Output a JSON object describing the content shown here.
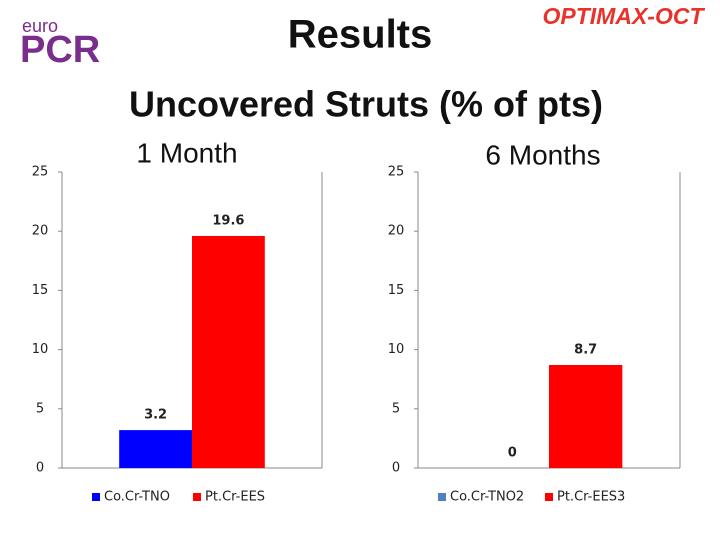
{
  "header": {
    "logo_small": "euro",
    "logo_large": "PCR",
    "title": "Results",
    "tag": "OPTIMAX-OCT",
    "subtitle": "Uncovered Struts (% of pts)"
  },
  "chart_data": [
    {
      "type": "bar",
      "title": "1 Month",
      "categories": [
        null
      ],
      "series": [
        {
          "name": "Co.Cr-TNO",
          "color": "#0000ff",
          "values": [
            3.2
          ]
        },
        {
          "name": "Pt.Cr-EES",
          "color": "#ff0000",
          "values": [
            19.6
          ]
        }
      ],
      "ylim": [
        0,
        25
      ],
      "yticks": [
        0,
        5,
        10,
        15,
        20,
        25
      ],
      "grid": false,
      "legend": "bottom"
    },
    {
      "type": "bar",
      "title": "6 Months",
      "categories": [
        null
      ],
      "series": [
        {
          "name": "Co.Cr-TNO2",
          "color": "#4f81bd",
          "values": [
            0
          ]
        },
        {
          "name": "Pt.Cr-EES3",
          "color": "#ff0000",
          "values": [
            8.7
          ]
        }
      ],
      "ylim": [
        0,
        25
      ],
      "yticks": [
        0,
        5,
        10,
        15,
        20,
        25
      ],
      "grid": false,
      "legend": "bottom"
    }
  ]
}
